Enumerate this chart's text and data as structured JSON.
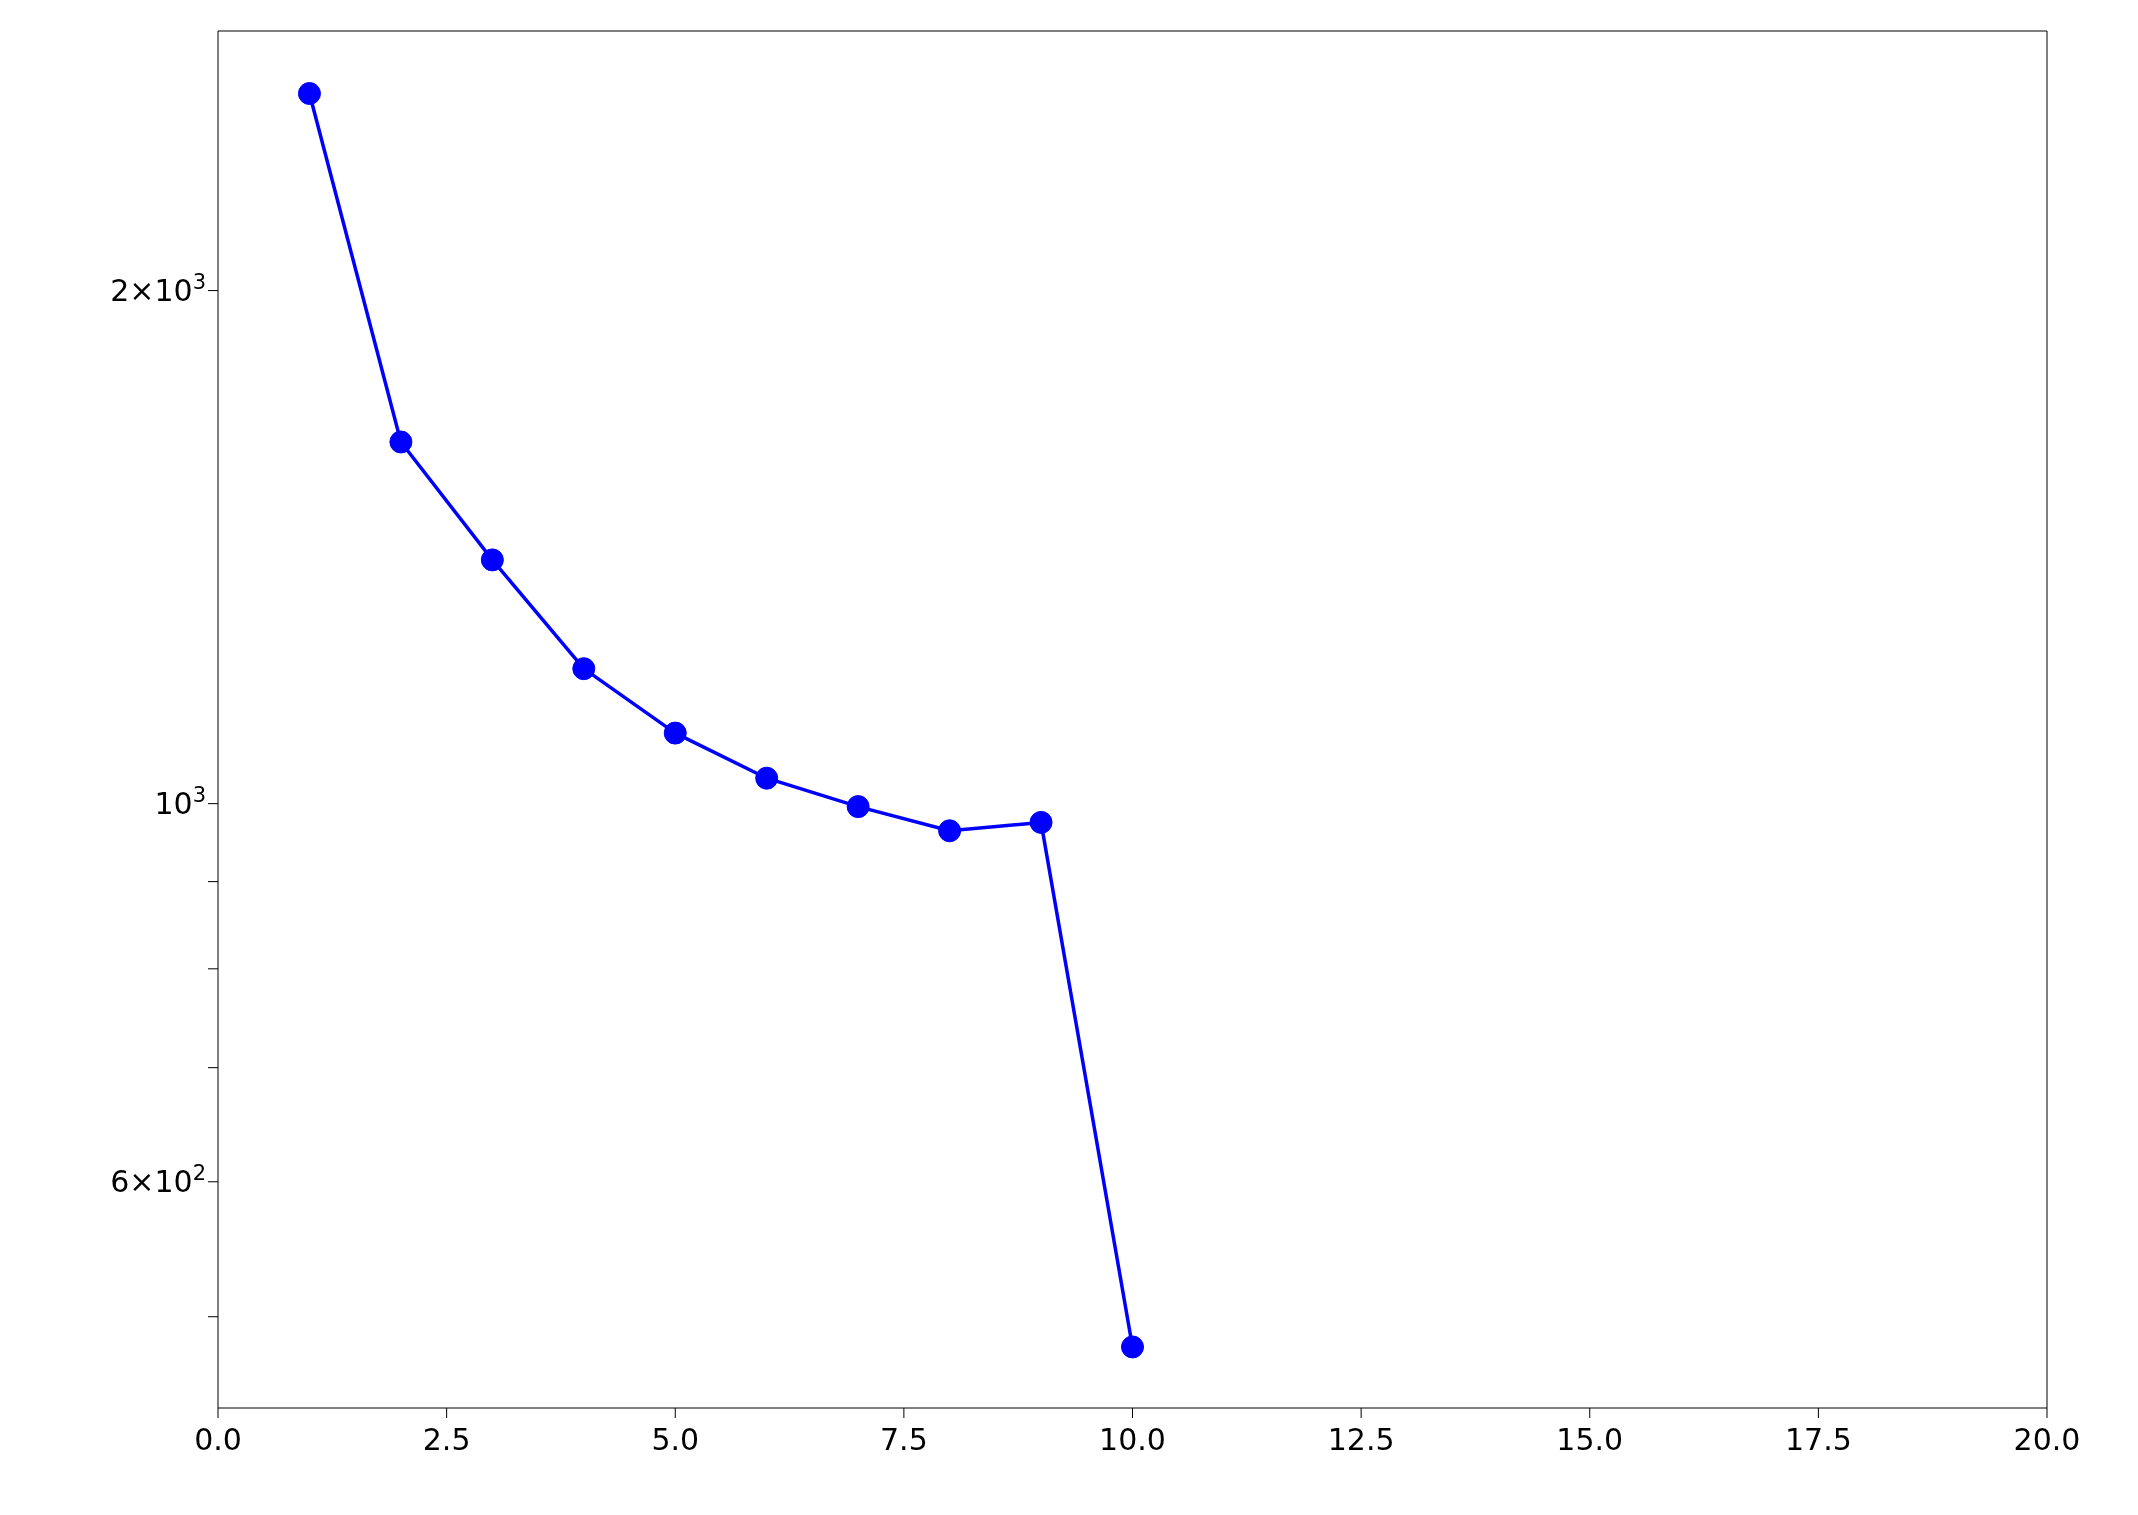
{
  "chart_data": {
    "type": "line",
    "x": [
      1,
      2,
      3,
      4,
      5,
      6,
      7,
      8,
      9,
      10
    ],
    "series": [
      {
        "color": "#0000ff",
        "values": [
          2610,
          1630,
          1390,
          1200,
          1100,
          1035,
          996,
          964,
          975,
          480
        ]
      }
    ],
    "xlim": [
      0,
      20
    ],
    "xticks": [
      {
        "value": 0,
        "label": "0.0"
      },
      {
        "value": 2.5,
        "label": "2.5"
      },
      {
        "value": 5,
        "label": "5.0"
      },
      {
        "value": 7.5,
        "label": "7.5"
      },
      {
        "value": 10,
        "label": "10.0"
      },
      {
        "value": 12.5,
        "label": "12.5"
      },
      {
        "value": 15,
        "label": "15.0"
      },
      {
        "value": 17.5,
        "label": "17.5"
      },
      {
        "value": 20,
        "label": "20.0"
      }
    ],
    "ylim": [
      442,
      2840
    ],
    "yticks": [
      {
        "value": 500,
        "label": null
      },
      {
        "value": 600,
        "label": "6×10$^{2}$"
      },
      {
        "value": 700,
        "label": null
      },
      {
        "value": 800,
        "label": null
      },
      {
        "value": 900,
        "label": null
      },
      {
        "value": 1000,
        "label": "10$^{3}$"
      },
      {
        "value": 2000,
        "label": "2×10$^{3}$"
      }
    ],
    "log": "y",
    "grid": false,
    "legend": false,
    "marker": "circle",
    "line_style": "solid"
  }
}
